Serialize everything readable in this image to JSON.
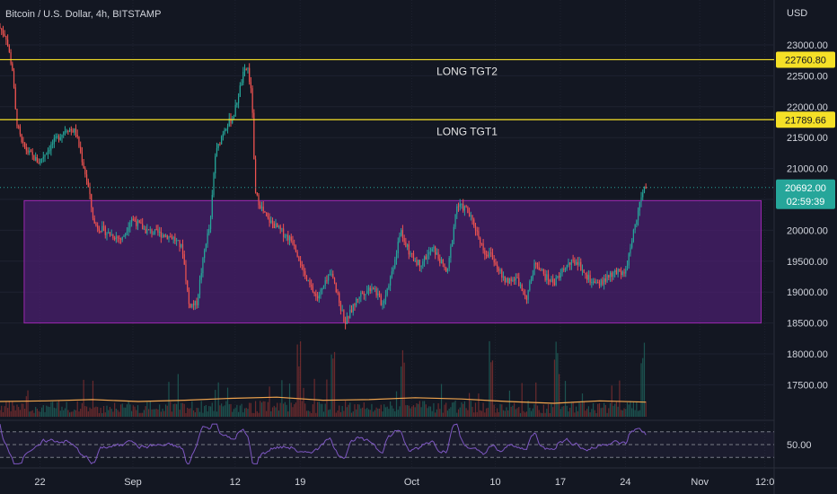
{
  "header": {
    "symbol_title": "Bitcoin / U.S. Dollar, 4h, BITSTAMP",
    "currency": "USD"
  },
  "chart_data": {
    "type": "candlestick",
    "title": "Bitcoin / U.S. Dollar, 4h, BITSTAMP",
    "ylabel": "USD",
    "ylim": [
      17150,
      23320
    ],
    "y_ticks": [
      17500,
      18000,
      18500,
      19000,
      19500,
      20000,
      20500,
      21000,
      21500,
      22000,
      22500,
      23000
    ],
    "y_tick_labels": [
      "17500.00",
      "18000.00",
      "18500.00",
      "19000.00",
      "19500.00",
      "20000.00",
      "20500.00",
      "21000.00",
      "21500.00",
      "22000.00",
      "22500.00",
      "23000.00"
    ],
    "x_tick_labels": [
      "22",
      "Sep",
      "12",
      "19",
      "Oct",
      "10",
      "17",
      "24",
      "Nov",
      "12:0"
    ],
    "x_tick_days": [
      22,
      32,
      43,
      50,
      62,
      71,
      78,
      85,
      93,
      100
    ],
    "x_range_days": [
      17.7,
      101
    ],
    "date_axis_note": "days counted from Aug 0",
    "price_path": [
      [
        17.7,
        23300
      ],
      [
        18.5,
        23150
      ],
      [
        19.2,
        22600
      ],
      [
        19.6,
        21800
      ],
      [
        20.2,
        21400
      ],
      [
        21.0,
        21250
      ],
      [
        22.0,
        21100
      ],
      [
        23.5,
        21400
      ],
      [
        25.0,
        21650
      ],
      [
        26.0,
        21600
      ],
      [
        27.3,
        20750
      ],
      [
        28.0,
        20100
      ],
      [
        29.5,
        19950
      ],
      [
        31.0,
        19850
      ],
      [
        32.0,
        20200
      ],
      [
        33.5,
        20000
      ],
      [
        35.0,
        19950
      ],
      [
        36.5,
        19880
      ],
      [
        37.5,
        19700
      ],
      [
        38.2,
        18800
      ],
      [
        39.0,
        18800
      ],
      [
        40.0,
        19800
      ],
      [
        40.5,
        20100
      ],
      [
        41.0,
        21200
      ],
      [
        42.0,
        21650
      ],
      [
        43.0,
        21850
      ],
      [
        44.0,
        22500
      ],
      [
        44.5,
        22650
      ],
      [
        45.0,
        22100
      ],
      [
        45.3,
        20600
      ],
      [
        46.5,
        20200
      ],
      [
        48.0,
        20000
      ],
      [
        49.5,
        19800
      ],
      [
        50.8,
        19200
      ],
      [
        52.0,
        18900
      ],
      [
        53.5,
        19300
      ],
      [
        55.0,
        18500
      ],
      [
        56.5,
        18950
      ],
      [
        58.0,
        19100
      ],
      [
        59.0,
        18800
      ],
      [
        60.0,
        19300
      ],
      [
        61.0,
        20000
      ],
      [
        62.0,
        19600
      ],
      [
        63.0,
        19450
      ],
      [
        64.5,
        19700
      ],
      [
        66.0,
        19300
      ],
      [
        67.0,
        20400
      ],
      [
        68.0,
        20350
      ],
      [
        69.0,
        20050
      ],
      [
        70.0,
        19650
      ],
      [
        71.0,
        19550
      ],
      [
        72.0,
        19200
      ],
      [
        73.5,
        19200
      ],
      [
        74.5,
        18900
      ],
      [
        75.5,
        19500
      ],
      [
        76.5,
        19250
      ],
      [
        77.5,
        19150
      ],
      [
        79.0,
        19450
      ],
      [
        80.0,
        19500
      ],
      [
        81.0,
        19250
      ],
      [
        82.0,
        19100
      ],
      [
        83.0,
        19200
      ],
      [
        84.0,
        19300
      ],
      [
        85.2,
        19350
      ],
      [
        86.2,
        20100
      ],
      [
        86.8,
        20500
      ],
      [
        87.2,
        20692
      ]
    ],
    "volume_spike_days": [
      49.8,
      53.5,
      61.0,
      70.5,
      77.5,
      86.8
    ],
    "volume_ma_values": [
      17230,
      17240,
      17260,
      17230,
      17250,
      17280,
      17300,
      17250,
      17260,
      17290,
      17270,
      17230,
      17200,
      17240,
      17220
    ],
    "horizontal_lines": [
      {
        "value": 22760.8,
        "label": "LONG TGT2",
        "color": "#f5e027",
        "axis_label": "22760.80"
      },
      {
        "value": 21789.66,
        "label": "LONG TGT1",
        "color": "#f5e027",
        "axis_label": "21789.66"
      }
    ],
    "range_box": {
      "x_start_day": 20.3,
      "x_end_day": 99.6,
      "y_low": 18500,
      "y_high": 20480,
      "fill": "#4a1f6e",
      "border": "#9c27b0"
    },
    "last_price": {
      "value": 20692,
      "label": "20692.00",
      "countdown": "02:59:39",
      "color": "#26a69a"
    },
    "rsi": {
      "level_label": "50.00",
      "color": "#7e57c2"
    },
    "colors": {
      "up": "#26a69a",
      "down": "#ef5350",
      "background": "#131722",
      "grid": "#1e2230",
      "volume_ma": "#f0a44e",
      "axis_text": "#d1d4dc"
    }
  }
}
